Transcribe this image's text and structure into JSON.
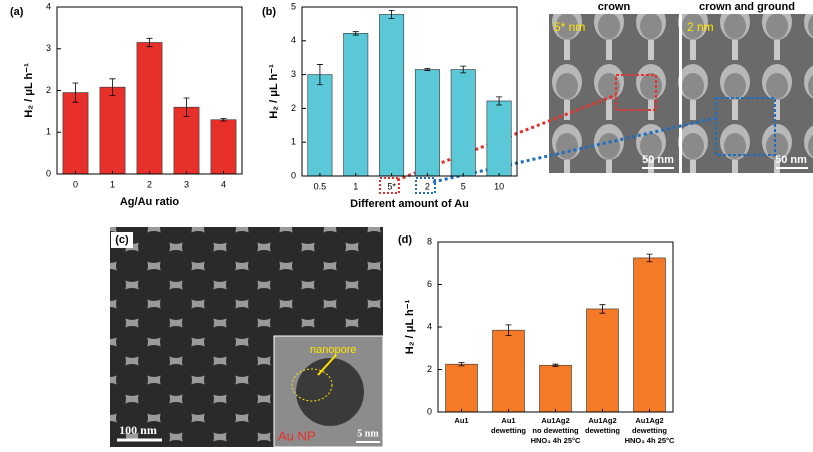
{
  "chart_data": [
    {
      "type": "bar",
      "panel": "(a)",
      "xlabel": "Ag/Au ratio",
      "ylabel": "H₂ / μL h⁻¹",
      "color": "#e8302a",
      "categories": [
        "0",
        "1",
        "2",
        "3",
        "4"
      ],
      "values": [
        1.95,
        2.08,
        3.15,
        1.6,
        1.3
      ],
      "errors": [
        0.23,
        0.2,
        0.1,
        0.22,
        0.03
      ],
      "ylim": [
        0,
        4
      ],
      "yticks": [
        0,
        1,
        2,
        3,
        4
      ]
    },
    {
      "type": "bar",
      "panel": "(b)",
      "xlabel": "Different amount of Au",
      "ylabel": "H₂ / μL h⁻¹",
      "color": "#5bc8d8",
      "categories": [
        "0.5",
        "1",
        "5*",
        "2",
        "5",
        "10"
      ],
      "values": [
        3.0,
        4.22,
        4.78,
        3.15,
        3.15,
        2.22
      ],
      "errors": [
        0.3,
        0.05,
        0.12,
        0.03,
        0.1,
        0.12
      ],
      "ylim": [
        0,
        5
      ],
      "yticks": [
        0,
        1,
        2,
        3,
        4,
        5
      ]
    },
    {
      "type": "bar",
      "panel": "(d)",
      "ylabel": "H₂ / μL h⁻¹",
      "color": "#f47a28",
      "categories": [
        [
          "Au1"
        ],
        [
          "Au1",
          "dewetting"
        ],
        [
          "Au1Ag2",
          "no dewetting",
          "HNO₃ 4h 25°C"
        ],
        [
          "Au1Ag2",
          "dewetting"
        ],
        [
          "Au1Ag2",
          "dewetting",
          "HNO₃ 4h 25°C"
        ]
      ],
      "values": [
        2.25,
        3.85,
        2.2,
        4.85,
        7.25
      ],
      "errors": [
        0.08,
        0.25,
        0.05,
        0.2,
        0.18
      ],
      "ylim": [
        0,
        8
      ],
      "yticks": [
        0,
        2,
        4,
        6,
        8
      ]
    }
  ],
  "micrographs": {
    "crown": "crown",
    "crown_ground": "crown and ground",
    "size1": "5* nm",
    "size2": "2 nm",
    "scale1": "50 nm",
    "scale2": "50 nm",
    "panel_c": "(c)",
    "scale_c": "100 nm",
    "nanopore": "nanopore",
    "au_np": "Au NP",
    "scale_inset": "5 nm"
  }
}
